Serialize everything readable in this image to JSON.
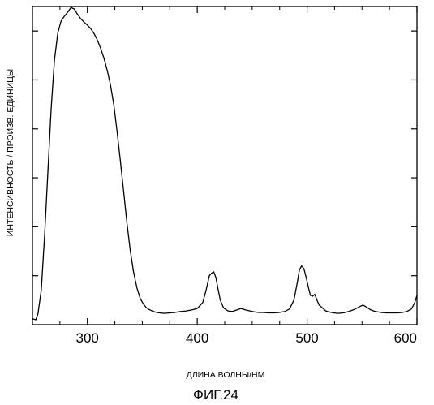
{
  "chart_data": {
    "type": "line",
    "title": "",
    "xlabel": "ДЛИНА ВОЛНЫ/НМ",
    "ylabel": "ИНТЕНСИВНОСТЬ / ПРОИЗВ. ЕДИНИЦЫ",
    "xlim": [
      250,
      600
    ],
    "ylim": [
      0,
      6.5
    ],
    "x_ticks": [
      300,
      400,
      500,
      600
    ],
    "x_minor_ticks": [
      250,
      275,
      325,
      350,
      375,
      425,
      450,
      475,
      525,
      550,
      575
    ],
    "y_ticks": [
      1,
      2,
      3,
      4,
      5,
      6
    ],
    "y_tick_labels_shown": false,
    "grid": false,
    "series": [
      {
        "x": [
          250,
          253,
          255,
          258,
          261,
          264,
          267,
          270,
          273,
          276,
          279,
          282,
          285,
          288,
          291,
          294,
          297,
          300,
          303,
          306,
          309,
          312,
          315,
          318,
          321,
          324,
          327,
          330,
          333,
          336,
          339,
          342,
          345,
          348,
          351,
          354,
          357,
          360,
          363,
          366,
          370,
          375,
          380,
          385,
          390,
          395,
          400,
          405,
          408,
          411,
          413,
          415,
          417,
          419,
          421,
          424,
          428,
          432,
          436,
          440,
          444,
          448,
          452,
          456,
          460,
          465,
          470,
          475,
          480,
          484,
          488,
          491,
          493,
          495,
          497,
          499,
          501,
          503,
          505,
          507,
          509,
          511,
          514,
          517,
          520,
          524,
          528,
          533,
          538,
          543,
          548,
          551,
          554,
          558,
          562,
          567,
          572,
          577,
          582,
          587,
          591,
          595,
          598,
          600
        ],
        "y": [
          0.12,
          0.1,
          0.22,
          0.7,
          1.8,
          3.1,
          4.4,
          5.4,
          5.95,
          6.2,
          6.3,
          6.38,
          6.48,
          6.45,
          6.34,
          6.25,
          6.18,
          6.12,
          6.05,
          5.95,
          5.82,
          5.65,
          5.45,
          5.2,
          4.9,
          4.5,
          3.95,
          3.35,
          2.72,
          2.08,
          1.52,
          1.08,
          0.76,
          0.54,
          0.42,
          0.34,
          0.3,
          0.27,
          0.25,
          0.24,
          0.23,
          0.24,
          0.25,
          0.27,
          0.28,
          0.3,
          0.33,
          0.45,
          0.7,
          1.0,
          1.05,
          1.08,
          0.96,
          0.72,
          0.5,
          0.34,
          0.28,
          0.27,
          0.3,
          0.33,
          0.3,
          0.28,
          0.26,
          0.25,
          0.25,
          0.24,
          0.24,
          0.25,
          0.27,
          0.32,
          0.5,
          0.85,
          1.12,
          1.2,
          1.15,
          0.98,
          0.78,
          0.6,
          0.58,
          0.62,
          0.5,
          0.4,
          0.34,
          0.28,
          0.26,
          0.24,
          0.23,
          0.24,
          0.27,
          0.31,
          0.37,
          0.4,
          0.36,
          0.3,
          0.27,
          0.25,
          0.24,
          0.24,
          0.24,
          0.25,
          0.27,
          0.32,
          0.45,
          0.6
        ]
      }
    ]
  },
  "figure": {
    "caption": "ФИГ.24"
  }
}
